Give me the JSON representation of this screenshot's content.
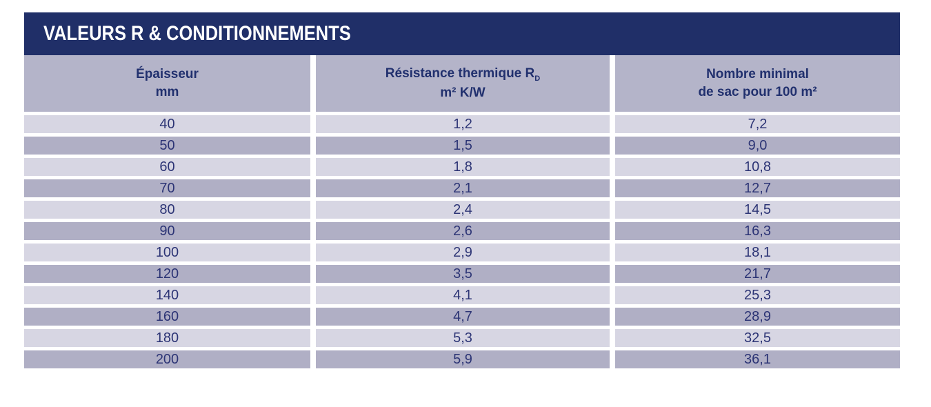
{
  "page_title": "VALEURS R & CONDITIONNEMENTS",
  "colors": {
    "title_bar_bg": "#202f68",
    "title_text": "#ffffff",
    "header_bg": "#b4b4c9",
    "row_light_bg": "#d7d6e3",
    "row_dark_bg": "#b0afc5",
    "cell_text": "#2c3475",
    "header_text": "#21306e"
  },
  "table": {
    "headers": [
      {
        "line1": "Épaisseur",
        "line2": "mm"
      },
      {
        "line1": "Résistance thermique R",
        "sub": "D",
        "line2": "m² K/W"
      },
      {
        "line1": "Nombre minimal",
        "line2": "de sac pour 100 m²"
      }
    ],
    "rows": [
      [
        "40",
        "1,2",
        "7,2"
      ],
      [
        "50",
        "1,5",
        "9,0"
      ],
      [
        "60",
        "1,8",
        "10,8"
      ],
      [
        "70",
        "2,1",
        "12,7"
      ],
      [
        "80",
        "2,4",
        "14,5"
      ],
      [
        "90",
        "2,6",
        "16,3"
      ],
      [
        "100",
        "2,9",
        "18,1"
      ],
      [
        "120",
        "3,5",
        "21,7"
      ],
      [
        "140",
        "4,1",
        "25,3"
      ],
      [
        "160",
        "4,7",
        "28,9"
      ],
      [
        "180",
        "5,3",
        "32,5"
      ],
      [
        "200",
        "5,9",
        "36,1"
      ]
    ]
  }
}
